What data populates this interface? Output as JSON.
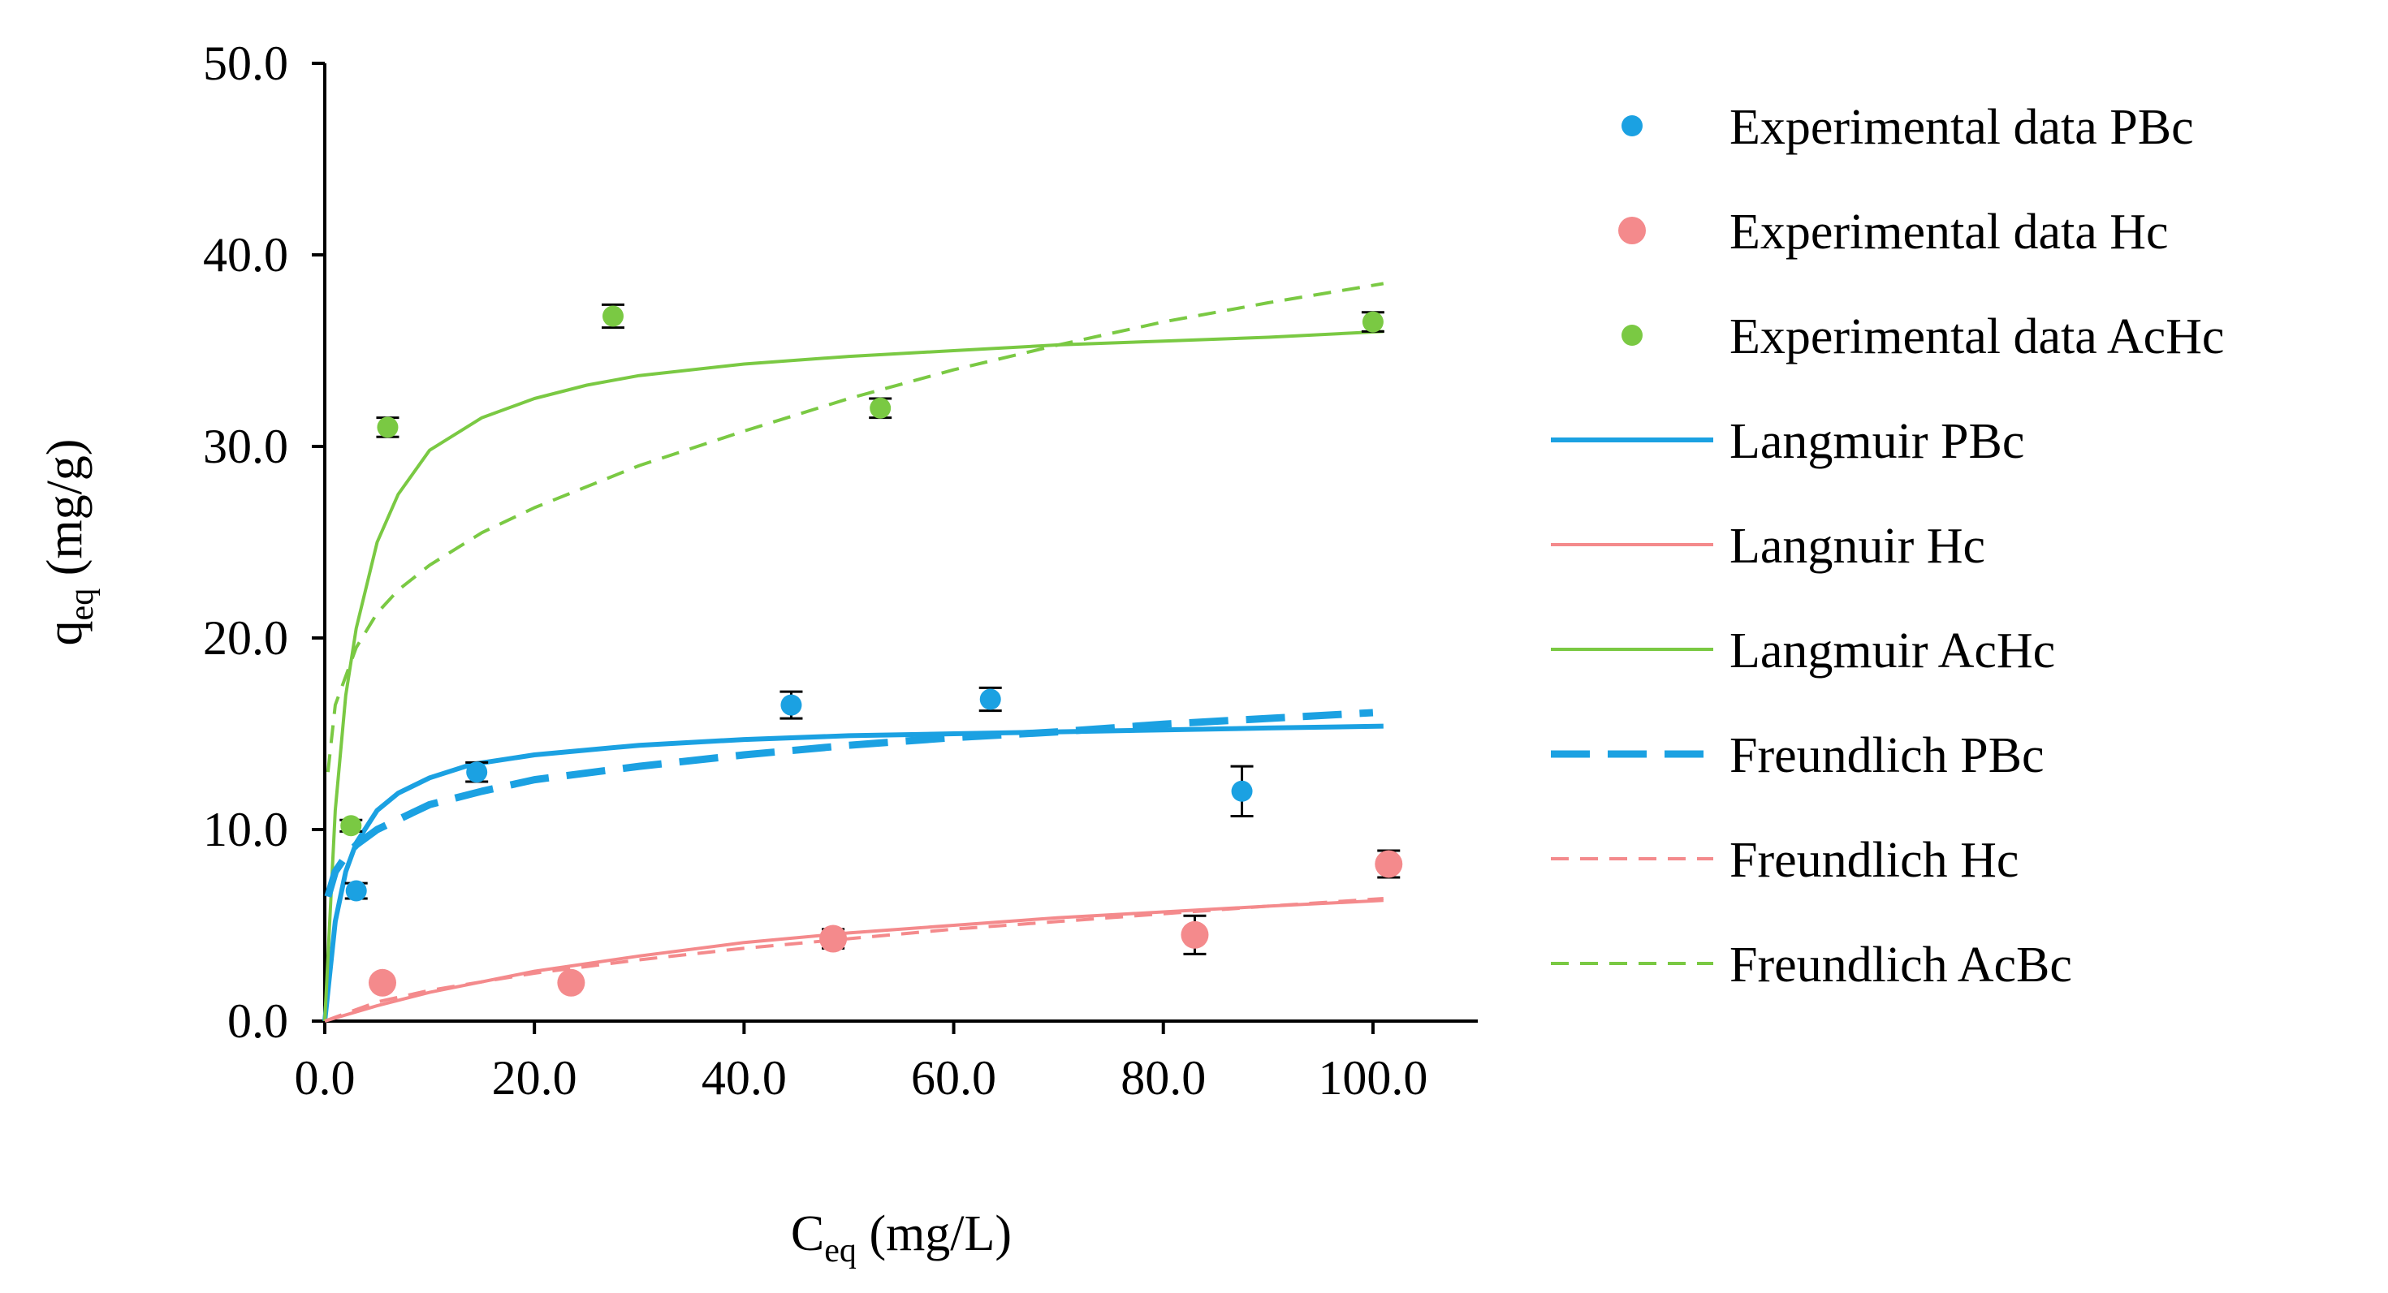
{
  "chart_data": {
    "type": "scatter",
    "xaxis": {
      "label_main": "C",
      "label_sub": "eq",
      "label_unit": " (mg/L)",
      "min": 0,
      "max": 110,
      "ticks": [
        0,
        20,
        40,
        60,
        80,
        100
      ],
      "tick_labels": [
        "0.0",
        "20.0",
        "40.0",
        "60.0",
        "80.0",
        "100.0"
      ]
    },
    "yaxis": {
      "label_main": "q",
      "label_sub": "eq",
      "label_unit": " (mg/g)",
      "min": 0,
      "max": 50,
      "ticks": [
        0,
        10,
        20,
        30,
        40,
        50
      ],
      "tick_labels": [
        "0.0",
        "10.0",
        "20.0",
        "30.0",
        "40.0",
        "50.0"
      ]
    },
    "grid": false,
    "legend_position": "right",
    "series": [
      {
        "name": "Experimental data PBc",
        "kind": "points",
        "color": "#1ba1e2",
        "marker_size": "small",
        "points": [
          {
            "x": 3.0,
            "y": 6.8,
            "err": 0.4
          },
          {
            "x": 14.5,
            "y": 13.0,
            "err": 0.5
          },
          {
            "x": 44.5,
            "y": 16.5,
            "err": 0.7
          },
          {
            "x": 63.5,
            "y": 16.8,
            "err": 0.6
          },
          {
            "x": 87.5,
            "y": 12.0,
            "err": 1.3
          }
        ]
      },
      {
        "name": "Experimental data Hc",
        "kind": "points",
        "color": "#f48a8c",
        "marker_size": "large",
        "points": [
          {
            "x": 5.5,
            "y": 2.0,
            "err": 0.3
          },
          {
            "x": 23.5,
            "y": 2.0,
            "err": 0.3
          },
          {
            "x": 48.5,
            "y": 4.3,
            "err": 0.5
          },
          {
            "x": 83.0,
            "y": 4.5,
            "err": 1.0
          },
          {
            "x": 101.5,
            "y": 8.2,
            "err": 0.7
          }
        ]
      },
      {
        "name": "Experimental data AcHc",
        "kind": "points",
        "color": "#7ac943",
        "marker_size": "small",
        "points": [
          {
            "x": 2.5,
            "y": 10.2,
            "err": 0.3
          },
          {
            "x": 6.0,
            "y": 31.0,
            "err": 0.5
          },
          {
            "x": 27.5,
            "y": 36.8,
            "err": 0.6
          },
          {
            "x": 53.0,
            "y": 32.0,
            "err": 0.5
          },
          {
            "x": 100.0,
            "y": 36.5,
            "err": 0.5
          }
        ]
      },
      {
        "name": "Langmuir PBc",
        "kind": "line",
        "dash": "solid",
        "width": "medium",
        "color": "#1ba1e2",
        "x": [
          0,
          1,
          2,
          3,
          5,
          7,
          10,
          14,
          20,
          30,
          40,
          50,
          60,
          70,
          80,
          90,
          101
        ],
        "y": [
          0.0,
          5.2,
          7.8,
          9.3,
          11.0,
          11.9,
          12.7,
          13.4,
          13.9,
          14.4,
          14.7,
          14.9,
          15.0,
          15.1,
          15.2,
          15.3,
          15.4
        ]
      },
      {
        "name": "Langnuir Hc",
        "kind": "line",
        "dash": "solid",
        "width": "thin",
        "color": "#f48a8c",
        "x": [
          0,
          5,
          10,
          20,
          30,
          40,
          50,
          60,
          70,
          80,
          90,
          101
        ],
        "y": [
          0.0,
          0.8,
          1.5,
          2.6,
          3.4,
          4.1,
          4.6,
          5.0,
          5.4,
          5.7,
          6.0,
          6.3
        ]
      },
      {
        "name": "Langmuir AcHc",
        "kind": "line",
        "dash": "solid",
        "width": "thin",
        "color": "#7ac943",
        "x": [
          0,
          1,
          2,
          3,
          5,
          7,
          10,
          15,
          20,
          25,
          30,
          40,
          50,
          60,
          70,
          80,
          90,
          101
        ],
        "y": [
          0.0,
          11.0,
          17.0,
          20.5,
          25.0,
          27.5,
          29.8,
          31.5,
          32.5,
          33.2,
          33.7,
          34.3,
          34.7,
          35.0,
          35.3,
          35.5,
          35.7,
          36.0
        ]
      },
      {
        "name": "Freundlich PBc",
        "kind": "line",
        "dash": "long",
        "width": "thick",
        "color": "#1ba1e2",
        "x": [
          0.3,
          1,
          2,
          3,
          5,
          10,
          15,
          20,
          30,
          40,
          50,
          60,
          70,
          80,
          90,
          100
        ],
        "y": [
          6.5,
          7.8,
          8.6,
          9.2,
          10.0,
          11.3,
          12.0,
          12.6,
          13.3,
          13.9,
          14.4,
          14.8,
          15.1,
          15.5,
          15.8,
          16.1
        ]
      },
      {
        "name": "Freundlich Hc",
        "kind": "line",
        "dash": "short",
        "width": "thin",
        "color": "#f48a8c",
        "x": [
          0,
          5,
          10,
          20,
          30,
          40,
          50,
          60,
          70,
          80,
          90,
          101
        ],
        "y": [
          0.0,
          1.0,
          1.6,
          2.5,
          3.2,
          3.8,
          4.3,
          4.8,
          5.2,
          5.6,
          6.0,
          6.4
        ]
      },
      {
        "name": "Freundlich AcBc",
        "kind": "line",
        "dash": "short",
        "width": "thin",
        "color": "#7ac943",
        "x": [
          0.3,
          1,
          2,
          3,
          5,
          7,
          10,
          15,
          20,
          30,
          40,
          50,
          60,
          70,
          80,
          90,
          101
        ],
        "y": [
          13.0,
          16.5,
          18.0,
          19.5,
          21.3,
          22.5,
          23.8,
          25.5,
          26.8,
          29.0,
          30.8,
          32.5,
          34.0,
          35.3,
          36.5,
          37.5,
          38.5
        ]
      }
    ]
  }
}
